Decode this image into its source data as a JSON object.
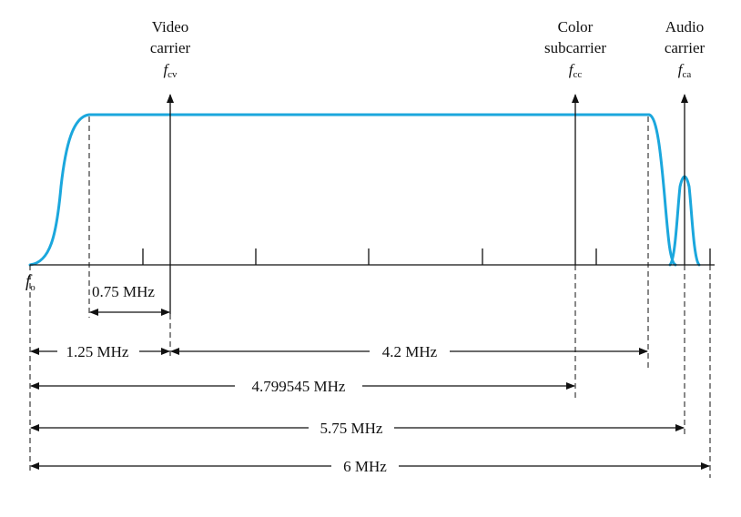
{
  "carriers": {
    "video": {
      "line1": "Video",
      "line2": "carrier",
      "symbol": "f",
      "subscript": "cv"
    },
    "color": {
      "line1": "Color",
      "line2": "subcarrier",
      "symbol": "f",
      "subscript": "cc"
    },
    "audio": {
      "line1": "Audio",
      "line2": "carrier",
      "symbol": "f",
      "subscript": "ca"
    }
  },
  "origin": {
    "symbol": "f",
    "subscript": "o"
  },
  "dimensions": {
    "vestigial": "0.75 MHz",
    "video_offset": "1.25 MHz",
    "video_bandwidth": "4.2 MHz",
    "color_offset": "4.799545 MHz",
    "audio_offset": "5.75 MHz",
    "channel_width": "6 MHz"
  },
  "colors": {
    "spectrum_curve": "#1ba7dd",
    "lines": "#111111"
  }
}
